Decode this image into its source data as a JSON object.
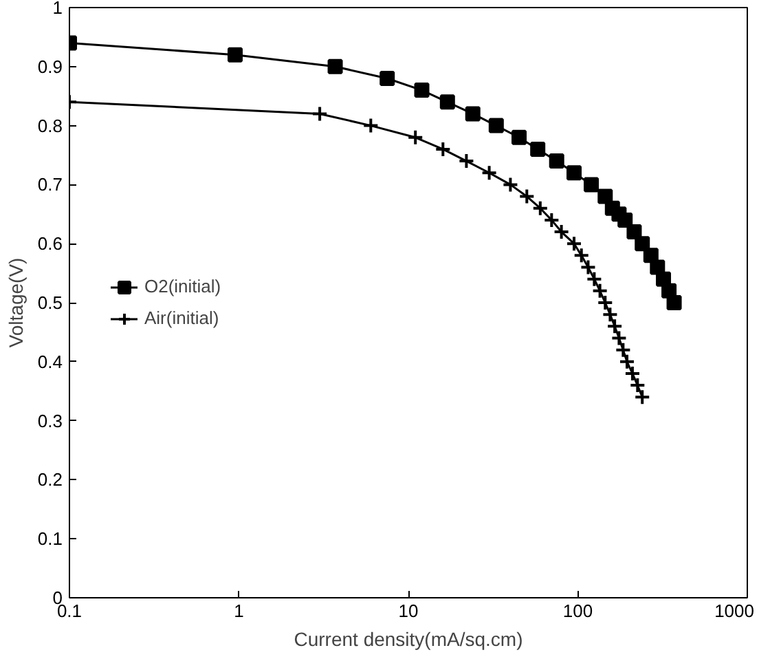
{
  "chart_data": {
    "type": "line",
    "xlabel": "Current density(mA/sq.cm)",
    "ylabel": "Voltage(V)",
    "log": "x",
    "xlim": [
      0.1,
      1000
    ],
    "xticks": [
      0.1,
      1,
      10,
      100,
      1000
    ],
    "ylim": [
      0,
      1
    ],
    "yticks": [
      0,
      0.1,
      0.2,
      0.3,
      0.4,
      0.5,
      0.6,
      0.7,
      0.8,
      0.9,
      1
    ],
    "grid": false,
    "legend": "left",
    "series": [
      {
        "name": "O2(initial)",
        "color": "#000000",
        "marker": "square",
        "x": [
          0.1,
          0.95,
          3.7,
          7.5,
          12,
          17,
          24,
          33,
          45,
          58,
          75,
          95,
          120,
          145,
          160,
          175,
          190,
          215,
          240,
          270,
          295,
          320,
          345,
          370
        ],
        "values": [
          0.94,
          0.92,
          0.9,
          0.88,
          0.86,
          0.84,
          0.82,
          0.8,
          0.78,
          0.76,
          0.74,
          0.72,
          0.7,
          0.68,
          0.66,
          0.65,
          0.64,
          0.62,
          0.6,
          0.58,
          0.56,
          0.54,
          0.52,
          0.5
        ]
      },
      {
        "name": "Air(initial)",
        "color": "#000000",
        "marker": "cross",
        "x": [
          0.1,
          3,
          6,
          11,
          16,
          22,
          30,
          40,
          50,
          60,
          70,
          80,
          95,
          105,
          115,
          125,
          135,
          145,
          155,
          165,
          175,
          185,
          195,
          210,
          225,
          240
        ],
        "values": [
          0.84,
          0.82,
          0.8,
          0.78,
          0.76,
          0.74,
          0.72,
          0.7,
          0.68,
          0.66,
          0.64,
          0.62,
          0.6,
          0.58,
          0.56,
          0.54,
          0.52,
          0.5,
          0.48,
          0.46,
          0.44,
          0.42,
          0.4,
          0.38,
          0.36,
          0.34
        ]
      }
    ]
  }
}
